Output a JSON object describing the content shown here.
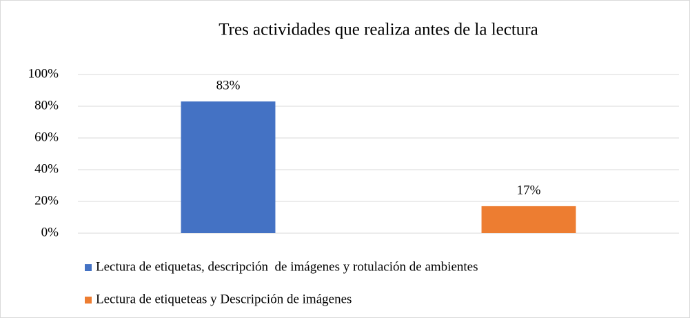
{
  "chart_data": {
    "type": "bar",
    "title": "Tres actividades que realiza antes de la lectura",
    "categories": [
      null
    ],
    "series": [
      {
        "name": "Lectura de etiquetas, descripción  de imágenes y rotulación de ambientes",
        "color": "#4472c4",
        "values": [
          83
        ],
        "value_labels": [
          "83%"
        ]
      },
      {
        "name": "Lectura de etiqueteas y Descripción de imágenes",
        "color": "#ed7d31",
        "values": [
          17
        ],
        "value_labels": [
          "17%"
        ]
      }
    ],
    "ylim": [
      0,
      100
    ],
    "yticks": [
      {
        "value": 0,
        "label": "0%"
      },
      {
        "value": 20,
        "label": "20%"
      },
      {
        "value": 40,
        "label": "40%"
      },
      {
        "value": 60,
        "label": "60%"
      },
      {
        "value": 80,
        "label": "80%"
      },
      {
        "value": 100,
        "label": "100%"
      }
    ],
    "grid": true,
    "legend": "bottom"
  }
}
